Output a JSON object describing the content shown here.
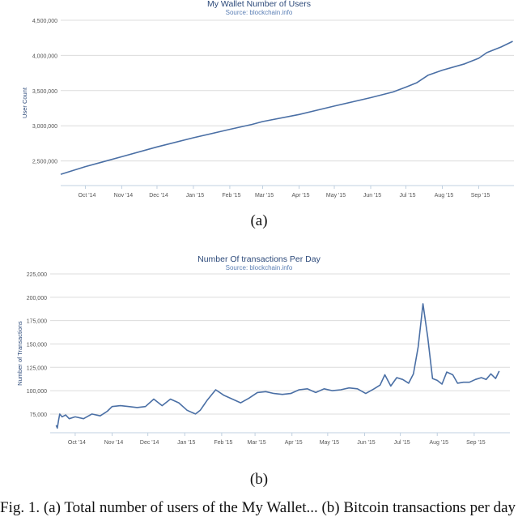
{
  "chart_data": [
    {
      "type": "line",
      "title": "My Wallet Number of Users",
      "subtitle": "Source: blockchain.info",
      "xlabel": "",
      "ylabel": "User Count",
      "ylim": [
        2150000,
        4500000
      ],
      "yticks": [
        2500000,
        3000000,
        3500000,
        4000000,
        4500000
      ],
      "ytick_labels": [
        "2,500,000",
        "3,000,000",
        "3,500,000",
        "4,000,000",
        "4,500,000"
      ],
      "xtick_labels": [
        "Oct '14",
        "Nov '14",
        "Dec '14",
        "Jan '15",
        "Feb '15",
        "Mar '15",
        "Apr '15",
        "May '15",
        "Jun '15",
        "Jul '15",
        "Aug '15",
        "Sep '15"
      ],
      "grid": true,
      "color": "#4a6fa5",
      "series": [
        {
          "x": [
            "2014-09-10",
            "2014-10-01",
            "2014-11-01",
            "2014-12-01",
            "2015-01-01",
            "2015-02-01",
            "2015-02-20",
            "2015-03-01",
            "2015-04-01",
            "2015-05-01",
            "2015-06-01",
            "2015-06-20",
            "2015-07-01",
            "2015-07-10",
            "2015-07-20",
            "2015-08-01",
            "2015-08-20",
            "2015-09-01",
            "2015-09-08",
            "2015-09-20",
            "2015-09-30"
          ],
          "values": [
            2310000,
            2420000,
            2560000,
            2700000,
            2830000,
            2950000,
            3020000,
            3060000,
            3160000,
            3280000,
            3400000,
            3480000,
            3550000,
            3610000,
            3720000,
            3790000,
            3880000,
            3960000,
            4040000,
            4120000,
            4200000
          ]
        }
      ]
    },
    {
      "type": "line",
      "title": "Number Of transactions Per Day",
      "subtitle": "Source: blockchain.info",
      "xlabel": "",
      "ylabel": "Number of Transactions",
      "ylim": [
        55000,
        225000
      ],
      "yticks": [
        75000,
        100000,
        125000,
        150000,
        175000,
        200000,
        225000
      ],
      "ytick_labels": [
        "75,000",
        "100,000",
        "125,000",
        "150,000",
        "175,000",
        "200,000",
        "225,000"
      ],
      "xtick_labels": [
        "Oct '14",
        "Nov '14",
        "Dec '14",
        "Jan '15",
        "Feb '15",
        "Mar '15",
        "Apr '15",
        "May '15",
        "Jun '15",
        "Jul '15",
        "Aug '15",
        "Sep '15"
      ],
      "grid": true,
      "color": "#4a6fa5",
      "series": [
        {
          "x": [
            "2014-09-15",
            "2014-09-16",
            "2014-09-17",
            "2014-09-18",
            "2014-09-20",
            "2014-09-23",
            "2014-09-26",
            "2014-10-01",
            "2014-10-08",
            "2014-10-15",
            "2014-10-22",
            "2014-10-28",
            "2014-11-01",
            "2014-11-08",
            "2014-11-15",
            "2014-11-22",
            "2014-11-29",
            "2014-12-06",
            "2014-12-13",
            "2014-12-20",
            "2014-12-27",
            "2015-01-03",
            "2015-01-10",
            "2015-01-14",
            "2015-01-20",
            "2015-01-27",
            "2015-02-03",
            "2015-02-10",
            "2015-02-17",
            "2015-02-24",
            "2015-03-03",
            "2015-03-10",
            "2015-03-17",
            "2015-03-24",
            "2015-03-31",
            "2015-04-07",
            "2015-04-14",
            "2015-04-21",
            "2015-04-28",
            "2015-05-05",
            "2015-05-12",
            "2015-05-19",
            "2015-05-26",
            "2015-06-02",
            "2015-06-09",
            "2015-06-14",
            "2015-06-18",
            "2015-06-23",
            "2015-06-28",
            "2015-07-03",
            "2015-07-08",
            "2015-07-12",
            "2015-07-16",
            "2015-07-20",
            "2015-07-24",
            "2015-07-28",
            "2015-08-01",
            "2015-08-05",
            "2015-08-09",
            "2015-08-14",
            "2015-08-18",
            "2015-08-23",
            "2015-08-28",
            "2015-09-02",
            "2015-09-07",
            "2015-09-11",
            "2015-09-15",
            "2015-09-19",
            "2015-09-22"
          ],
          "values": [
            63000,
            60000,
            68000,
            75000,
            72000,
            74000,
            70000,
            72000,
            70000,
            75000,
            73000,
            78000,
            83000,
            84000,
            83000,
            82000,
            83000,
            91000,
            84000,
            91000,
            87000,
            79000,
            75000,
            79000,
            90000,
            101000,
            95000,
            91000,
            87000,
            92000,
            98000,
            99000,
            97000,
            96000,
            97000,
            101000,
            102000,
            98000,
            102000,
            100000,
            101000,
            103000,
            102000,
            97000,
            102000,
            106000,
            117000,
            105000,
            114000,
            112000,
            108000,
            118000,
            147000,
            193000,
            157000,
            113000,
            111000,
            107000,
            120000,
            117000,
            108000,
            109000,
            109000,
            112000,
            114000,
            112000,
            118000,
            113000,
            121000
          ]
        }
      ]
    }
  ],
  "captions": {
    "a": "(a)",
    "b": "(b)",
    "figure_text": "Fig. 1.   (a) Total number of users of the My Wallet... (b) Bitcoin transactions per day"
  }
}
